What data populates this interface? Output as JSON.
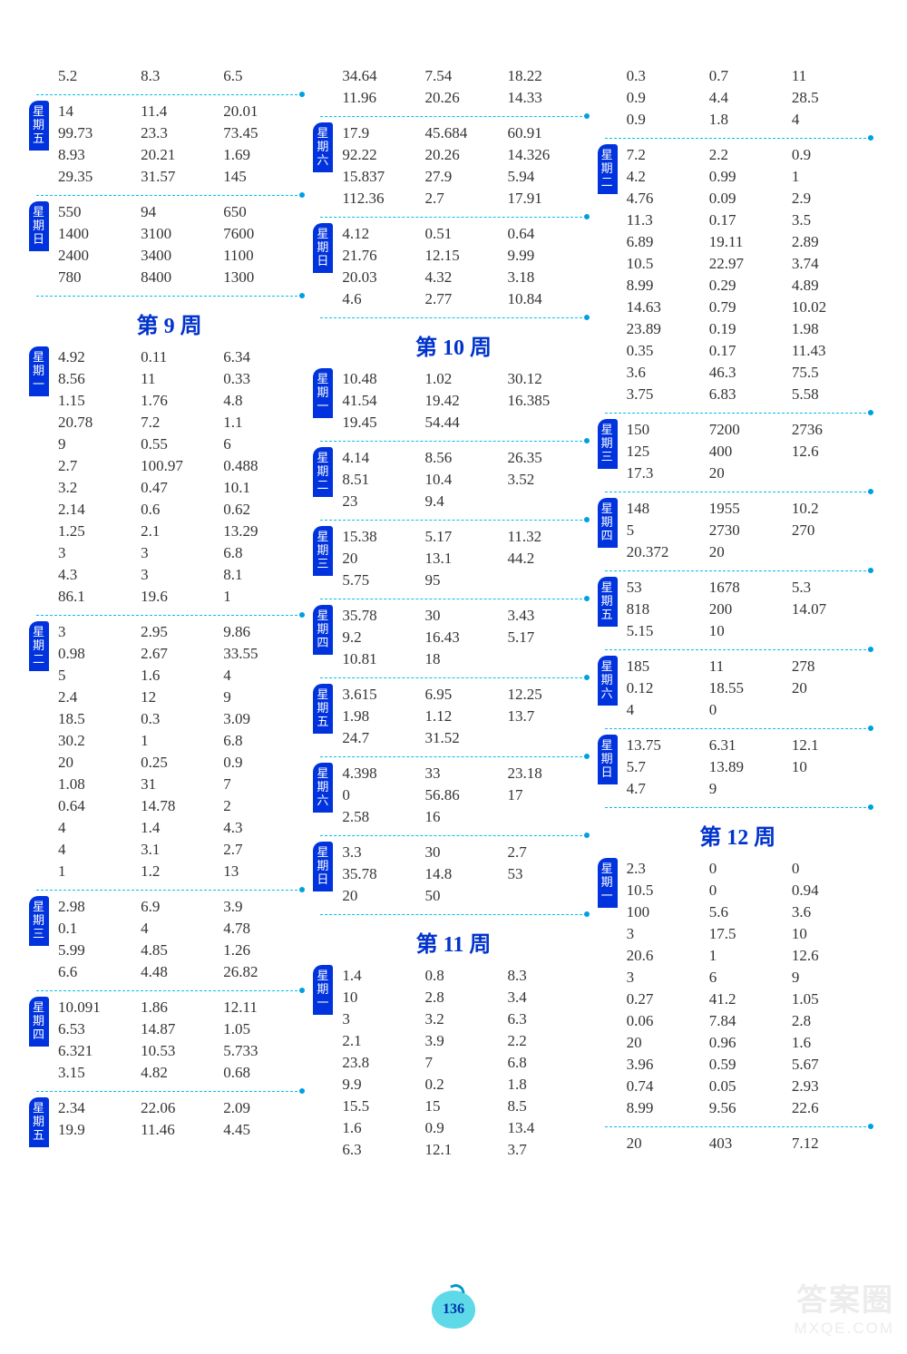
{
  "pageNumber": "136",
  "watermark": {
    "line1": "答案圈",
    "line2": "MXQE.COM"
  },
  "weekTitles": {
    "w9": "第 9 周",
    "w10": "第 10 周",
    "w11": "第 11 周",
    "w12": "第 12 周"
  },
  "columns": [
    {
      "blocks": [
        {
          "day": null,
          "rows": [
            [
              "5.2",
              "8.3",
              "6.5"
            ]
          ]
        },
        {
          "day": "星期五",
          "rows": [
            [
              "14",
              "11.4",
              "20.01"
            ],
            [
              "99.73",
              "23.3",
              "73.45"
            ],
            [
              "8.93",
              "20.21",
              "1.69"
            ],
            [
              "29.35",
              "31.57",
              "145"
            ]
          ]
        },
        {
          "day": "星期日",
          "rows": [
            [
              "550",
              "94",
              "650"
            ],
            [
              "1400",
              "3100",
              "7600"
            ],
            [
              "2400",
              "3400",
              "1100"
            ],
            [
              "780",
              "8400",
              "1300"
            ]
          ]
        },
        {
          "title": "w9"
        },
        {
          "day": "星期一",
          "rows": [
            [
              "4.92",
              "0.11",
              "6.34"
            ],
            [
              "8.56",
              "11",
              "0.33"
            ],
            [
              "1.15",
              "1.76",
              "4.8"
            ],
            [
              "20.78",
              "7.2",
              "1.1"
            ],
            [
              "9",
              "0.55",
              "6"
            ],
            [
              "2.7",
              "100.97",
              "0.488"
            ],
            [
              "3.2",
              "0.47",
              "10.1"
            ],
            [
              "2.14",
              "0.6",
              "0.62"
            ],
            [
              "1.25",
              "2.1",
              "13.29"
            ],
            [
              "3",
              "3",
              "6.8"
            ],
            [
              "4.3",
              "3",
              "8.1"
            ],
            [
              "86.1",
              "19.6",
              "1"
            ]
          ]
        },
        {
          "day": "星期二",
          "rows": [
            [
              "3",
              "2.95",
              "9.86"
            ],
            [
              "0.98",
              "2.67",
              "33.55"
            ],
            [
              "5",
              "1.6",
              "4"
            ],
            [
              "2.4",
              "12",
              "9"
            ],
            [
              "18.5",
              "0.3",
              "3.09"
            ],
            [
              "30.2",
              "1",
              "6.8"
            ],
            [
              "20",
              "0.25",
              "0.9"
            ],
            [
              "1.08",
              "31",
              "7"
            ],
            [
              "0.64",
              "14.78",
              "2"
            ],
            [
              "4",
              "1.4",
              "4.3"
            ],
            [
              "4",
              "3.1",
              "2.7"
            ],
            [
              "1",
              "1.2",
              "13"
            ]
          ]
        },
        {
          "day": "星期三",
          "rows": [
            [
              "2.98",
              "6.9",
              "3.9"
            ],
            [
              "0.1",
              "4",
              "4.78"
            ],
            [
              "5.99",
              "4.85",
              "1.26"
            ],
            [
              "6.6",
              "4.48",
              "26.82"
            ]
          ]
        },
        {
          "day": "星期四",
          "rows": [
            [
              "10.091",
              "1.86",
              "12.11"
            ],
            [
              "6.53",
              "14.87",
              "1.05"
            ],
            [
              "6.321",
              "10.53",
              "5.733"
            ],
            [
              "3.15",
              "4.82",
              "0.68"
            ]
          ]
        },
        {
          "day": "星期五",
          "noDivider": true,
          "rows": [
            [
              "2.34",
              "22.06",
              "2.09"
            ],
            [
              "19.9",
              "11.46",
              "4.45"
            ]
          ]
        }
      ]
    },
    {
      "blocks": [
        {
          "day": null,
          "rows": [
            [
              "34.64",
              "7.54",
              "18.22"
            ],
            [
              "11.96",
              "20.26",
              "14.33"
            ]
          ]
        },
        {
          "day": "星期六",
          "rows": [
            [
              "17.9",
              "45.684",
              "60.91"
            ],
            [
              "92.22",
              "20.26",
              "14.326"
            ],
            [
              "15.837",
              "27.9",
              "5.94"
            ],
            [
              "112.36",
              "2.7",
              "17.91"
            ]
          ]
        },
        {
          "day": "星期日",
          "rows": [
            [
              "4.12",
              "0.51",
              "0.64"
            ],
            [
              "21.76",
              "12.15",
              "9.99"
            ],
            [
              "20.03",
              "4.32",
              "3.18"
            ],
            [
              "4.6",
              "2.77",
              "10.84"
            ]
          ]
        },
        {
          "title": "w10"
        },
        {
          "day": "星期一",
          "rows": [
            [
              "10.48",
              "1.02",
              "30.12"
            ],
            [
              "41.54",
              "19.42",
              "16.385"
            ],
            [
              "19.45",
              "54.44",
              ""
            ]
          ]
        },
        {
          "day": "星期二",
          "rows": [
            [
              "4.14",
              "8.56",
              "26.35"
            ],
            [
              "8.51",
              "10.4",
              "3.52"
            ],
            [
              "23",
              "9.4",
              ""
            ]
          ]
        },
        {
          "day": "星期三",
          "rows": [
            [
              "15.38",
              "5.17",
              "11.32"
            ],
            [
              "20",
              "13.1",
              "44.2"
            ],
            [
              "5.75",
              "95",
              ""
            ]
          ]
        },
        {
          "day": "星期四",
          "rows": [
            [
              "35.78",
              "30",
              "3.43"
            ],
            [
              "9.2",
              "16.43",
              "5.17"
            ],
            [
              "10.81",
              "18",
              ""
            ]
          ]
        },
        {
          "day": "星期五",
          "rows": [
            [
              "3.615",
              "6.95",
              "12.25"
            ],
            [
              "1.98",
              "1.12",
              "13.7"
            ],
            [
              "24.7",
              "31.52",
              ""
            ]
          ]
        },
        {
          "day": "星期六",
          "rows": [
            [
              "4.398",
              "33",
              "23.18"
            ],
            [
              "0",
              "56.86",
              "17"
            ],
            [
              "2.58",
              "16",
              ""
            ]
          ]
        },
        {
          "day": "星期日",
          "rows": [
            [
              "3.3",
              "30",
              "2.7"
            ],
            [
              "35.78",
              "14.8",
              "53"
            ],
            [
              "20",
              "50",
              ""
            ]
          ]
        },
        {
          "title": "w11"
        },
        {
          "day": "星期一",
          "noDivider": true,
          "rows": [
            [
              "1.4",
              "0.8",
              "8.3"
            ],
            [
              "10",
              "2.8",
              "3.4"
            ],
            [
              "3",
              "3.2",
              "6.3"
            ],
            [
              "2.1",
              "3.9",
              "2.2"
            ],
            [
              "23.8",
              "7",
              "6.8"
            ],
            [
              "9.9",
              "0.2",
              "1.8"
            ],
            [
              "15.5",
              "15",
              "8.5"
            ],
            [
              "1.6",
              "0.9",
              "13.4"
            ],
            [
              "6.3",
              "12.1",
              "3.7"
            ]
          ]
        }
      ]
    },
    {
      "blocks": [
        {
          "day": null,
          "rows": [
            [
              "0.3",
              "0.7",
              "11"
            ],
            [
              "0.9",
              "4.4",
              "28.5"
            ],
            [
              "0.9",
              "1.8",
              "4"
            ]
          ]
        },
        {
          "day": "星期二",
          "rows": [
            [
              "7.2",
              "2.2",
              "0.9"
            ],
            [
              "4.2",
              "0.99",
              "1"
            ],
            [
              "4.76",
              "0.09",
              "2.9"
            ],
            [
              "11.3",
              "0.17",
              "3.5"
            ],
            [
              "6.89",
              "19.11",
              "2.89"
            ],
            [
              "10.5",
              "22.97",
              "3.74"
            ],
            [
              "8.99",
              "0.29",
              "4.89"
            ],
            [
              "14.63",
              "0.79",
              "10.02"
            ],
            [
              "23.89",
              "0.19",
              "1.98"
            ],
            [
              "0.35",
              "0.17",
              "11.43"
            ],
            [
              "3.6",
              "46.3",
              "75.5"
            ],
            [
              "3.75",
              "6.83",
              "5.58"
            ]
          ]
        },
        {
          "day": "星期三",
          "rows": [
            [
              "150",
              "7200",
              "2736"
            ],
            [
              "125",
              "400",
              "12.6"
            ],
            [
              "17.3",
              "20",
              ""
            ]
          ]
        },
        {
          "day": "星期四",
          "rows": [
            [
              "148",
              "1955",
              "10.2"
            ],
            [
              "5",
              "2730",
              "270"
            ],
            [
              "20.372",
              "20",
              ""
            ]
          ]
        },
        {
          "day": "星期五",
          "rows": [
            [
              "53",
              "1678",
              "5.3"
            ],
            [
              "818",
              "200",
              "14.07"
            ],
            [
              "5.15",
              "10",
              ""
            ]
          ]
        },
        {
          "day": "星期六",
          "rows": [
            [
              "185",
              "11",
              "278"
            ],
            [
              "0.12",
              "18.55",
              "20"
            ],
            [
              "4",
              "0",
              ""
            ]
          ]
        },
        {
          "day": "星期日",
          "rows": [
            [
              "13.75",
              "6.31",
              "12.1"
            ],
            [
              "5.7",
              "13.89",
              "10"
            ],
            [
              "4.7",
              "9",
              ""
            ]
          ]
        },
        {
          "title": "w12"
        },
        {
          "day": "星期一",
          "rows": [
            [
              "2.3",
              "0",
              "0"
            ],
            [
              "10.5",
              "0",
              "0.94"
            ],
            [
              "100",
              "5.6",
              "3.6"
            ],
            [
              "3",
              "17.5",
              "10"
            ],
            [
              "20.6",
              "1",
              "12.6"
            ],
            [
              "3",
              "6",
              "9"
            ],
            [
              "0.27",
              "41.2",
              "1.05"
            ],
            [
              "0.06",
              "7.84",
              "2.8"
            ],
            [
              "20",
              "0.96",
              "1.6"
            ],
            [
              "3.96",
              "0.59",
              "5.67"
            ],
            [
              "0.74",
              "0.05",
              "2.93"
            ],
            [
              "8.99",
              "9.56",
              "22.6"
            ]
          ]
        },
        {
          "day": null,
          "noDivider": true,
          "rows": [
            [
              "20",
              "403",
              "7.12"
            ]
          ]
        }
      ]
    }
  ]
}
